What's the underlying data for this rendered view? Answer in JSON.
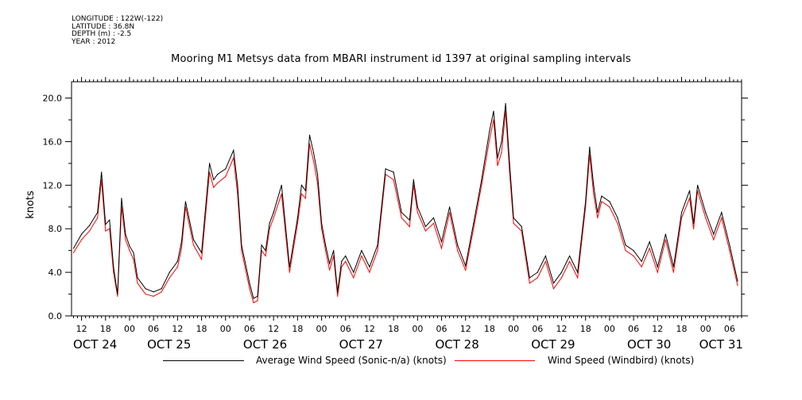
{
  "header": {
    "meta_lines": [
      "LONGITUDE : 122W(-122)",
      "LATITUDE : 36.8N",
      "DEPTH (m) : -2.5",
      "YEAR : 2012"
    ],
    "title": "Mooring M1 Metsys data from MBARI instrument id 1397 at original sampling intervals"
  },
  "colors": {
    "series_sonic": "#000000",
    "series_windbird": "#ff0000",
    "axis": "#000000"
  },
  "legend": {
    "items": [
      {
        "label": "Average Wind Speed (Sonic-n/a) (knots)",
        "color": "#000000"
      },
      {
        "label": "Wind Speed (Windbird) (knots)",
        "color": "#ff0000"
      }
    ]
  },
  "chart_data": {
    "type": "line",
    "title": "Mooring M1 Metsys data from MBARI instrument id 1397 at original sampling intervals",
    "xlabel": "",
    "ylabel": "knots",
    "x_unit": "hours since Oct 24 2012 00:00",
    "xlim": [
      9.5,
      177
    ],
    "ylim": [
      0,
      21.5
    ],
    "y_ticks": [
      0.0,
      4.0,
      8.0,
      12.0,
      16.0,
      20.0
    ],
    "y_tick_labels": [
      "0.0",
      "4.0",
      "8.0",
      "12.0",
      "16.0",
      "20.0"
    ],
    "hour_ticks": [
      {
        "x": 12,
        "label": "12"
      },
      {
        "x": 18,
        "label": "18"
      },
      {
        "x": 24,
        "label": "00"
      },
      {
        "x": 30,
        "label": "06"
      },
      {
        "x": 36,
        "label": "12"
      },
      {
        "x": 42,
        "label": "18"
      },
      {
        "x": 48,
        "label": "00"
      },
      {
        "x": 54,
        "label": "06"
      },
      {
        "x": 60,
        "label": "12"
      },
      {
        "x": 66,
        "label": "18"
      },
      {
        "x": 72,
        "label": "00"
      },
      {
        "x": 78,
        "label": "06"
      },
      {
        "x": 84,
        "label": "12"
      },
      {
        "x": 90,
        "label": "18"
      },
      {
        "x": 96,
        "label": "00"
      },
      {
        "x": 102,
        "label": "06"
      },
      {
        "x": 108,
        "label": "12"
      },
      {
        "x": 114,
        "label": "18"
      },
      {
        "x": 120,
        "label": "00"
      },
      {
        "x": 126,
        "label": "06"
      },
      {
        "x": 132,
        "label": "12"
      },
      {
        "x": 138,
        "label": "18"
      },
      {
        "x": 144,
        "label": "00"
      },
      {
        "x": 150,
        "label": "06"
      },
      {
        "x": 156,
        "label": "12"
      },
      {
        "x": 162,
        "label": "18"
      },
      {
        "x": 168,
        "label": "00"
      },
      {
        "x": 174,
        "label": "06"
      }
    ],
    "date_labels": [
      {
        "x": 9.5,
        "label": "OCT 24"
      },
      {
        "x": 28,
        "label": "OCT 25"
      },
      {
        "x": 52,
        "label": "OCT 26"
      },
      {
        "x": 76,
        "label": "OCT 27"
      },
      {
        "x": 100,
        "label": "OCT 28"
      },
      {
        "x": 124,
        "label": "OCT 29"
      },
      {
        "x": 148,
        "label": "OCT 30"
      },
      {
        "x": 166,
        "label": "OCT 31"
      }
    ],
    "x": [
      10,
      12,
      14,
      16,
      17,
      18,
      19,
      20,
      21,
      22,
      23,
      24,
      25,
      26,
      28,
      30,
      32,
      34,
      36,
      37,
      38,
      40,
      42,
      44,
      45,
      46,
      48,
      50,
      51,
      52,
      54,
      55,
      56,
      57,
      58,
      59,
      60,
      62,
      64,
      66,
      67,
      68,
      69,
      70,
      71,
      72,
      73,
      74,
      75,
      76,
      77,
      78,
      80,
      82,
      84,
      86,
      87,
      88,
      90,
      92,
      94,
      95,
      96,
      98,
      100,
      102,
      104,
      106,
      108,
      110,
      112,
      114,
      115,
      116,
      117,
      118,
      119,
      120,
      122,
      124,
      126,
      128,
      130,
      132,
      134,
      136,
      138,
      139,
      140,
      141,
      142,
      144,
      146,
      148,
      150,
      152,
      154,
      156,
      158,
      160,
      162,
      164,
      165,
      166,
      168,
      170,
      172,
      174,
      176
    ],
    "series": [
      {
        "name": "Average Wind Speed (Sonic-n/a) (knots)",
        "color": "#000000",
        "values": [
          6.2,
          7.5,
          8.3,
          9.5,
          13.2,
          8.4,
          8.8,
          4.5,
          2.0,
          10.8,
          7.5,
          6.4,
          5.8,
          3.5,
          2.5,
          2.2,
          2.5,
          4.0,
          5.0,
          6.8,
          10.5,
          7.0,
          5.8,
          14.0,
          12.5,
          13.0,
          13.5,
          15.2,
          12.0,
          6.5,
          3.0,
          1.6,
          1.8,
          6.5,
          6.0,
          8.5,
          9.5,
          12.0,
          4.5,
          9.0,
          12.0,
          11.5,
          16.6,
          15.0,
          13.0,
          8.5,
          6.5,
          4.8,
          6.0,
          2.2,
          5.0,
          5.5,
          4.0,
          6.0,
          4.5,
          6.5,
          10.0,
          13.5,
          13.2,
          9.5,
          8.8,
          12.5,
          10.0,
          8.2,
          9.0,
          6.8,
          10.0,
          6.5,
          4.6,
          8.5,
          12.5,
          17.0,
          18.8,
          14.5,
          16.0,
          19.5,
          14.0,
          9.0,
          8.2,
          3.5,
          4.0,
          5.5,
          3.0,
          4.0,
          5.5,
          4.0,
          10.5,
          15.5,
          12.0,
          9.5,
          11.0,
          10.5,
          9.0,
          6.5,
          6.0,
          5.0,
          6.8,
          4.5,
          7.5,
          4.5,
          9.5,
          11.5,
          8.5,
          12.0,
          9.5,
          7.5,
          9.5,
          6.5,
          3.2
        ]
      },
      {
        "name": "Wind Speed (Windbird) (knots)",
        "color": "#ff0000",
        "values": [
          5.8,
          7.0,
          7.8,
          9.0,
          12.5,
          7.8,
          8.0,
          4.0,
          1.8,
          10.0,
          7.0,
          6.0,
          5.2,
          3.0,
          2.0,
          1.8,
          2.2,
          3.5,
          4.5,
          6.2,
          10.0,
          6.5,
          5.2,
          13.2,
          11.8,
          12.2,
          12.8,
          14.5,
          11.2,
          6.0,
          2.5,
          1.2,
          1.4,
          6.0,
          5.5,
          8.0,
          9.0,
          11.2,
          4.0,
          8.5,
          11.2,
          10.8,
          15.8,
          14.2,
          12.2,
          8.0,
          6.0,
          4.2,
          5.5,
          1.8,
          4.5,
          5.0,
          3.5,
          5.5,
          4.0,
          6.0,
          9.5,
          13.0,
          12.5,
          9.0,
          8.2,
          12.0,
          9.5,
          7.8,
          8.5,
          6.2,
          9.5,
          6.0,
          4.2,
          8.0,
          12.0,
          16.2,
          18.0,
          13.8,
          15.0,
          18.8,
          13.2,
          8.5,
          7.8,
          3.0,
          3.5,
          5.0,
          2.5,
          3.5,
          5.0,
          3.5,
          10.0,
          14.8,
          11.2,
          9.0,
          10.5,
          10.0,
          8.5,
          6.0,
          5.5,
          4.5,
          6.2,
          4.0,
          7.0,
          4.0,
          9.0,
          10.8,
          8.0,
          11.5,
          9.0,
          7.0,
          9.0,
          6.0,
          2.8
        ]
      }
    ]
  }
}
